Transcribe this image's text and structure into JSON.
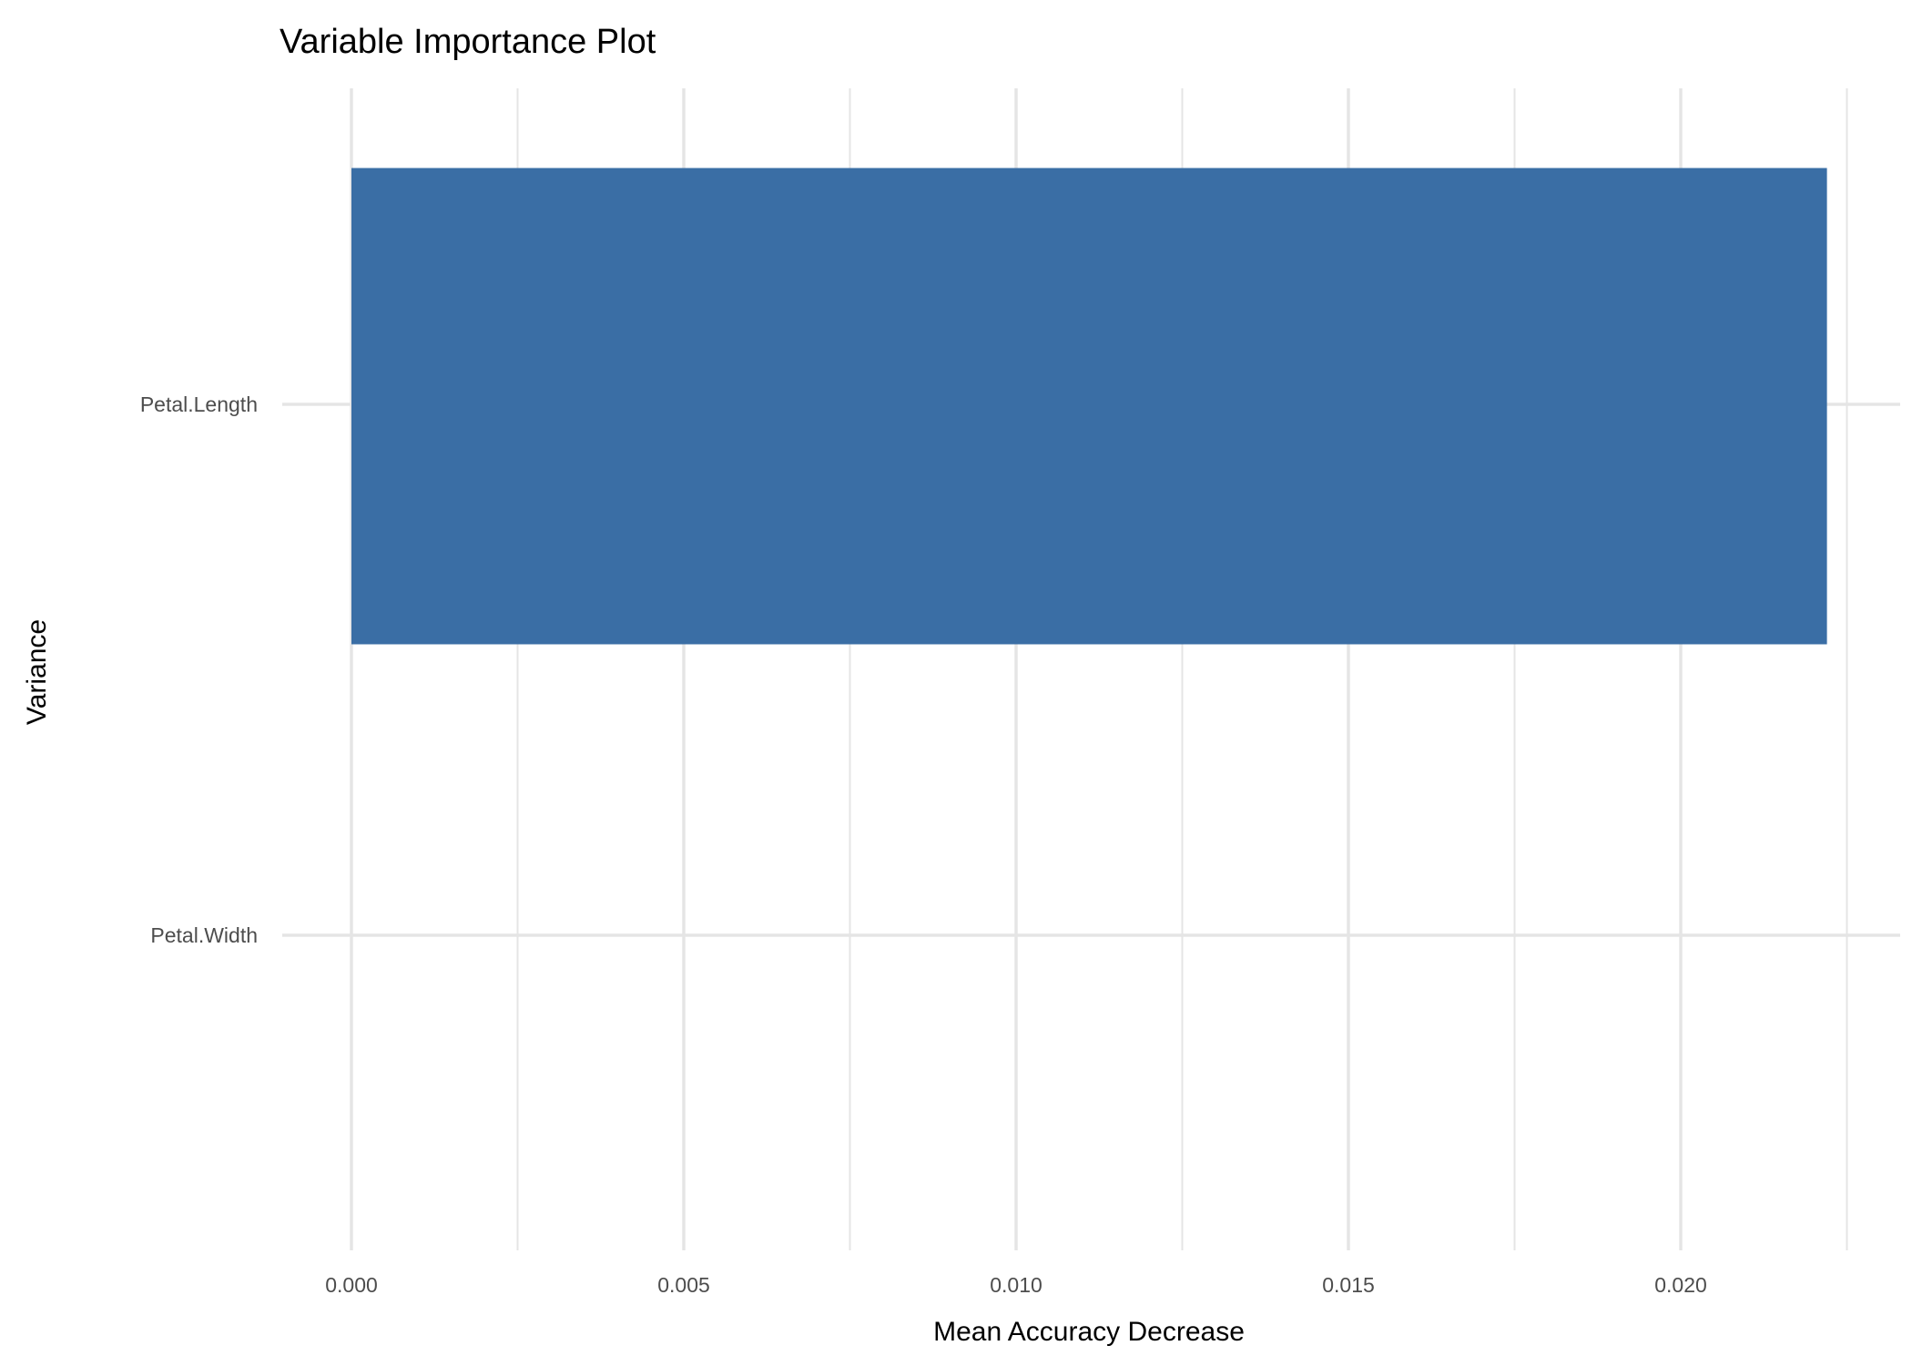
{
  "chart_data": {
    "type": "bar",
    "orientation": "horizontal",
    "title": "Variable Importance Plot",
    "xlabel": "Mean Accuracy Decrease",
    "ylabel": "Variance",
    "categories": [
      "Petal.Length",
      "Petal.Width"
    ],
    "values": [
      0.0222,
      0
    ],
    "xlim": [
      -0.0011,
      0.0233
    ],
    "xticks": [
      0.0,
      0.005,
      0.01,
      0.015,
      0.02
    ],
    "xtick_labels": [
      "0.000",
      "0.005",
      "0.010",
      "0.015",
      "0.020"
    ],
    "grid": true,
    "bar_color": "#3a6ea5",
    "grid_color": "#e5e5e5"
  }
}
